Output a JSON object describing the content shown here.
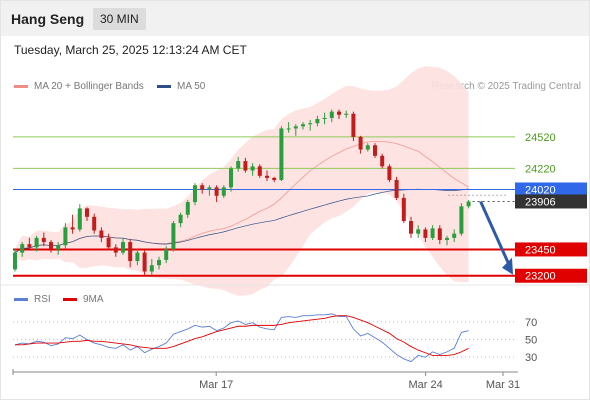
{
  "header": {
    "title": "Hang Seng",
    "timeframe": "30 MIN"
  },
  "datetime": "Tuesday, March 25, 2025 12:13:24 AM CET",
  "legend": {
    "items": [
      {
        "label": "MA 20 + Bollinger Bands",
        "color": "#f08b86"
      },
      {
        "label": "MA 50",
        "color": "#2d4f86"
      }
    ],
    "copyright": "Research © 2025 Trading Central"
  },
  "colors": {
    "resistance": "#8fcb5a",
    "pivot": "#2f68e8",
    "support": "#e00000",
    "bullish_candle": "#2a9d3f",
    "bearish_candle": "#c21d1d",
    "bollinger_fill": "#fde0df",
    "arrow": "#2d5aa8"
  },
  "chart_data": [
    {
      "type": "candlestick",
      "x_ticks": [
        "Mar 17",
        "Mar 24",
        "Mar 31"
      ],
      "levels": [
        {
          "value": "24520",
          "kind": "resistance"
        },
        {
          "value": "24220",
          "kind": "resistance"
        },
        {
          "value": "24020",
          "kind": "pivot"
        },
        {
          "value": "23906",
          "kind": "last-price"
        },
        {
          "value": "23450",
          "kind": "support"
        },
        {
          "value": "23200",
          "kind": "support"
        }
      ],
      "ylim": [
        23150,
        24880
      ],
      "candles": [
        [
          23260,
          23460,
          23240,
          23420
        ],
        [
          23420,
          23520,
          23380,
          23500
        ],
        [
          23500,
          23560,
          23450,
          23470
        ],
        [
          23470,
          23580,
          23430,
          23560
        ],
        [
          23560,
          23610,
          23480,
          23520
        ],
        [
          23520,
          23540,
          23420,
          23450
        ],
        [
          23450,
          23520,
          23400,
          23490
        ],
        [
          23490,
          23700,
          23460,
          23660
        ],
        [
          23660,
          23780,
          23600,
          23640
        ],
        [
          23640,
          23880,
          23620,
          23840
        ],
        [
          23840,
          23850,
          23720,
          23760
        ],
        [
          23760,
          23790,
          23600,
          23630
        ],
        [
          23630,
          23660,
          23520,
          23560
        ],
        [
          23560,
          23600,
          23440,
          23470
        ],
        [
          23470,
          23500,
          23380,
          23420
        ],
        [
          23420,
          23560,
          23400,
          23520
        ],
        [
          23520,
          23550,
          23280,
          23340
        ],
        [
          23340,
          23460,
          23300,
          23420
        ],
        [
          23420,
          23450,
          23190,
          23240
        ],
        [
          23240,
          23360,
          23210,
          23300
        ],
        [
          23300,
          23380,
          23260,
          23350
        ],
        [
          23350,
          23480,
          23320,
          23450
        ],
        [
          23450,
          23720,
          23430,
          23700
        ],
        [
          23700,
          23800,
          23660,
          23780
        ],
        [
          23780,
          23920,
          23750,
          23900
        ],
        [
          23900,
          24080,
          23870,
          24060
        ],
        [
          24060,
          24080,
          23980,
          24020
        ],
        [
          24020,
          24060,
          23960,
          24040
        ],
        [
          24040,
          24060,
          23900,
          23960
        ],
        [
          23960,
          24060,
          23940,
          24040
        ],
        [
          24040,
          24240,
          24000,
          24220
        ],
        [
          24220,
          24330,
          24190,
          24290
        ],
        [
          24290,
          24320,
          24180,
          24200
        ],
        [
          24200,
          24270,
          24150,
          24240
        ],
        [
          24240,
          24260,
          24130,
          24150
        ],
        [
          24150,
          24200,
          24100,
          24130
        ],
        [
          24130,
          24140,
          24090,
          24110
        ],
        [
          24110,
          24620,
          24100,
          24600
        ],
        [
          24600,
          24660,
          24560,
          24600
        ],
        [
          24600,
          24640,
          24530,
          24620
        ],
        [
          24620,
          24660,
          24590,
          24640
        ],
        [
          24640,
          24680,
          24580,
          24650
        ],
        [
          24650,
          24720,
          24620,
          24690
        ],
        [
          24690,
          24750,
          24640,
          24700
        ],
        [
          24700,
          24780,
          24660,
          24760
        ],
        [
          24760,
          24780,
          24690,
          24730
        ],
        [
          24730,
          24770,
          24700,
          24740
        ],
        [
          24740,
          24760,
          24480,
          24520
        ],
        [
          24520,
          24530,
          24360,
          24400
        ],
        [
          24400,
          24460,
          24380,
          24440
        ],
        [
          24440,
          24460,
          24320,
          24340
        ],
        [
          24340,
          24360,
          24220,
          24240
        ],
        [
          24240,
          24260,
          24090,
          24110
        ],
        [
          24110,
          24140,
          23920,
          23940
        ],
        [
          23940,
          23980,
          23700,
          23720
        ],
        [
          23720,
          23760,
          23560,
          23600
        ],
        [
          23600,
          23680,
          23560,
          23640
        ],
        [
          23640,
          23660,
          23520,
          23560
        ],
        [
          23560,
          23680,
          23540,
          23650
        ],
        [
          23650,
          23680,
          23500,
          23540
        ],
        [
          23540,
          23580,
          23490,
          23560
        ],
        [
          23560,
          23640,
          23520,
          23600
        ],
        [
          23600,
          23890,
          23580,
          23860
        ],
        [
          23860,
          23920,
          23840,
          23906
        ]
      ]
    },
    {
      "type": "line",
      "title": "RSI",
      "series": [
        {
          "name": "RSI",
          "color": "#5b7fd6"
        },
        {
          "name": "9MA",
          "color": "#e00000"
        }
      ],
      "ylim": [
        20,
        80
      ],
      "y_ticks": [
        "70",
        "50",
        "30"
      ],
      "rsi": [
        44,
        46,
        45,
        48,
        47,
        43,
        45,
        52,
        51,
        55,
        50,
        46,
        44,
        41,
        40,
        44,
        38,
        42,
        35,
        39,
        42,
        46,
        56,
        59,
        62,
        66,
        64,
        65,
        60,
        63,
        69,
        71,
        67,
        69,
        64,
        62,
        61,
        75,
        76,
        75,
        77,
        77,
        78,
        78,
        79,
        76,
        76,
        62,
        54,
        57,
        52,
        47,
        40,
        33,
        28,
        25,
        32,
        30,
        36,
        33,
        36,
        40,
        58,
        60
      ],
      "ma9": [
        44,
        44,
        45,
        46,
        46,
        46,
        46,
        47,
        48,
        48,
        49,
        48,
        48,
        47,
        46,
        45,
        44,
        42,
        41,
        40,
        40,
        40,
        42,
        45,
        48,
        51,
        53,
        56,
        59,
        61,
        63,
        65,
        65,
        66,
        66,
        66,
        66,
        67,
        69,
        70,
        71,
        72,
        73,
        74,
        76,
        77,
        77,
        75,
        72,
        69,
        65,
        61,
        57,
        51,
        47,
        42,
        38,
        35,
        32,
        32,
        32,
        33,
        36,
        40
      ]
    }
  ]
}
